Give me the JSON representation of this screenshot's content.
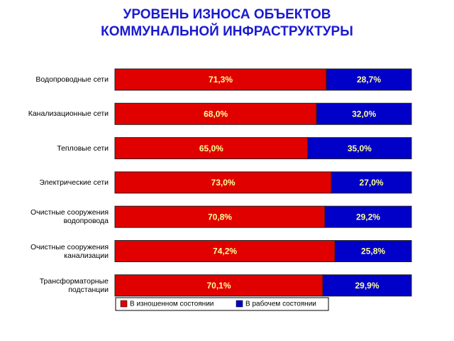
{
  "chart_data": {
    "type": "stacked-bar-horizontal",
    "title": [
      "УРОВЕНЬ ИЗНОСА  ОБЪЕКТОВ",
      "КОММУНАЛЬНОЙ ИНФРАСТРУКТУРЫ"
    ],
    "categories": [
      "Водопроводные сети",
      "Канализационные сети",
      "Тепловые сети",
      "Электрические сети",
      "Очистные сооружения водопровода",
      "Очистные сооружения канализации",
      "Трансформаторные подстанции"
    ],
    "series": [
      {
        "name": "В изношенном состоянии",
        "color": "#e00000",
        "values": [
          71.3,
          68.0,
          65.0,
          73.0,
          70.8,
          74.2,
          70.1
        ],
        "value_labels": [
          "71,3%",
          "68,0%",
          "65,0%",
          "73,0%",
          "70,8%",
          "74,2%",
          "70,1%"
        ]
      },
      {
        "name": "В рабочем состоянии",
        "color": "#0000c8",
        "values": [
          28.7,
          32.0,
          35.0,
          27.0,
          29.2,
          25.8,
          29.9
        ],
        "value_labels": [
          "28,7%",
          "32,0%",
          "35,0%",
          "27,0%",
          "29,2%",
          "25,8%",
          "29,9%"
        ]
      }
    ],
    "xlim": [
      0,
      100
    ]
  }
}
